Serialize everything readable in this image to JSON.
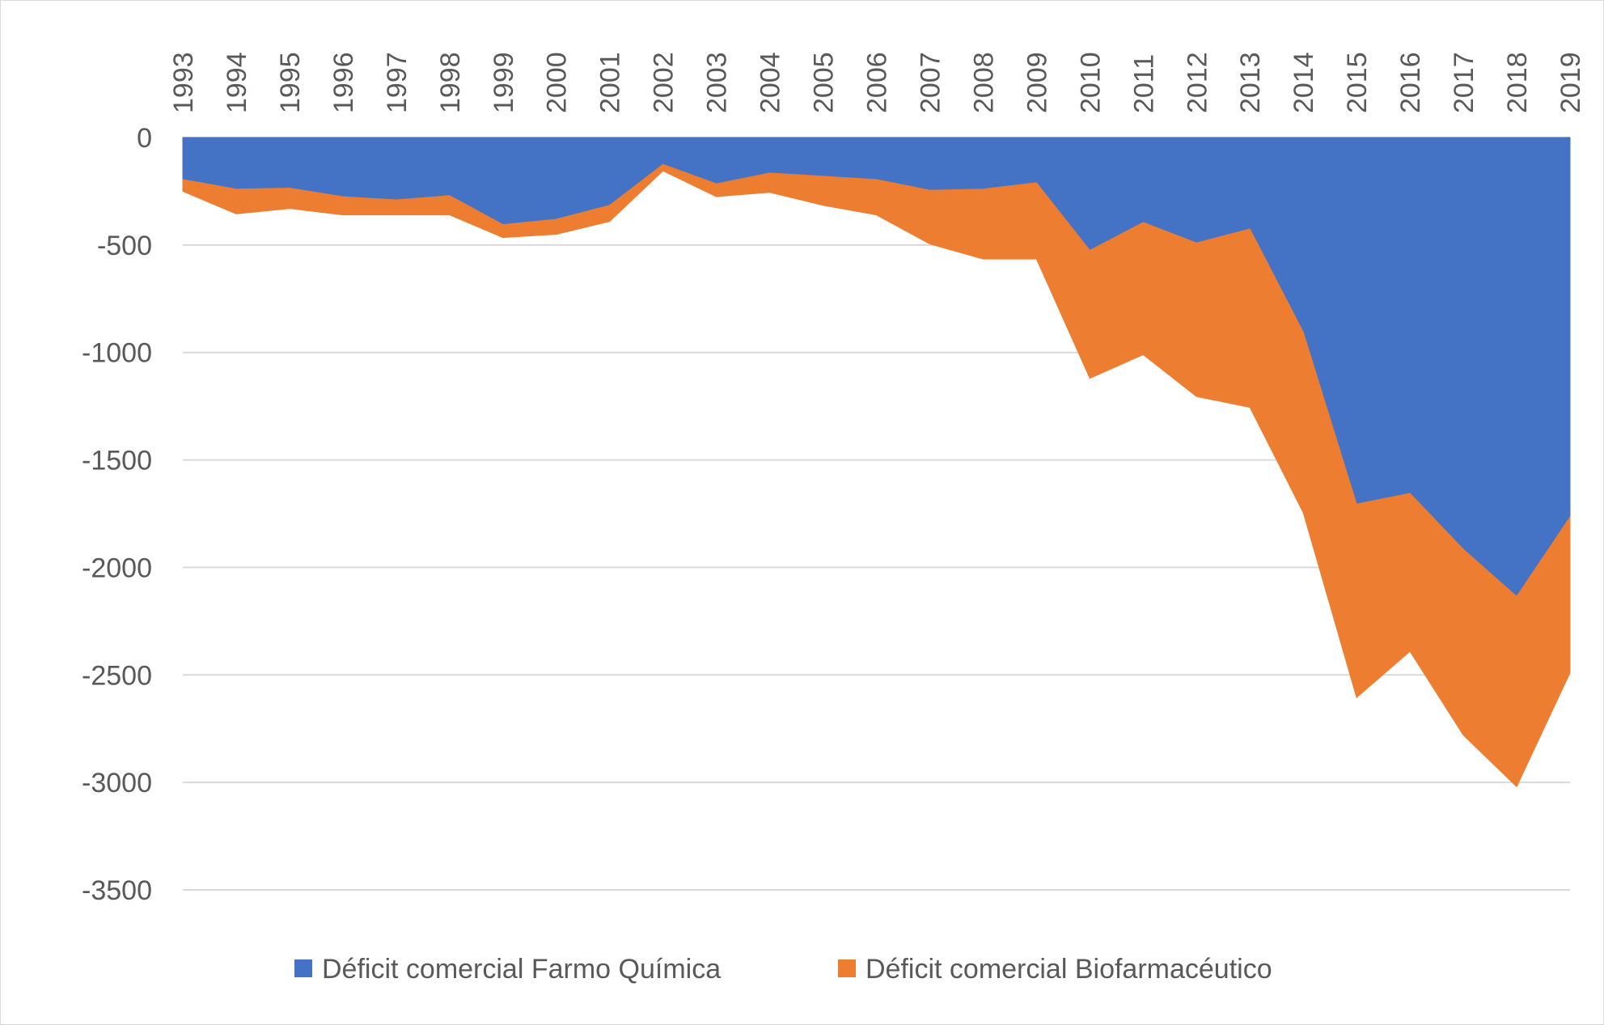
{
  "chart_data": {
    "type": "area",
    "stacked": true,
    "categories": [
      "1993",
      "1994",
      "1995",
      "1996",
      "1997",
      "1998",
      "1999",
      "2000",
      "2001",
      "2002",
      "2003",
      "2004",
      "2005",
      "2006",
      "2007",
      "2008",
      "2009",
      "2010",
      "2011",
      "2012",
      "2013",
      "2014",
      "2015",
      "2016",
      "2017",
      "2018",
      "2019"
    ],
    "series": [
      {
        "name": "Déficit comercial Farmo Química",
        "color": "#4472c4",
        "values": [
          -195,
          -240,
          -235,
          -275,
          -290,
          -270,
          -405,
          -380,
          -315,
          -125,
          -215,
          -165,
          -180,
          -195,
          -245,
          -240,
          -210,
          -525,
          -395,
          -490,
          -425,
          -905,
          -1705,
          -1655,
          -1915,
          -2135,
          -1765
        ]
      },
      {
        "name": "Déficit comercial Biofarmacéutico",
        "color": "#ed7d31",
        "values": [
          -55,
          -115,
          -95,
          -85,
          -70,
          -90,
          -60,
          -70,
          -75,
          -30,
          -60,
          -90,
          -135,
          -165,
          -250,
          -325,
          -355,
          -595,
          -615,
          -715,
          -830,
          -840,
          -900,
          -735,
          -865,
          -885,
          -725
        ]
      }
    ],
    "xaxis_position": "top",
    "ylim": [
      -3500,
      0
    ],
    "yticks": [
      0,
      -500,
      -1000,
      -1500,
      -2000,
      -2500,
      -3000,
      -3500
    ],
    "gridlines": true,
    "legend_position": "bottom",
    "title": "",
    "xlabel": "",
    "ylabel": ""
  }
}
